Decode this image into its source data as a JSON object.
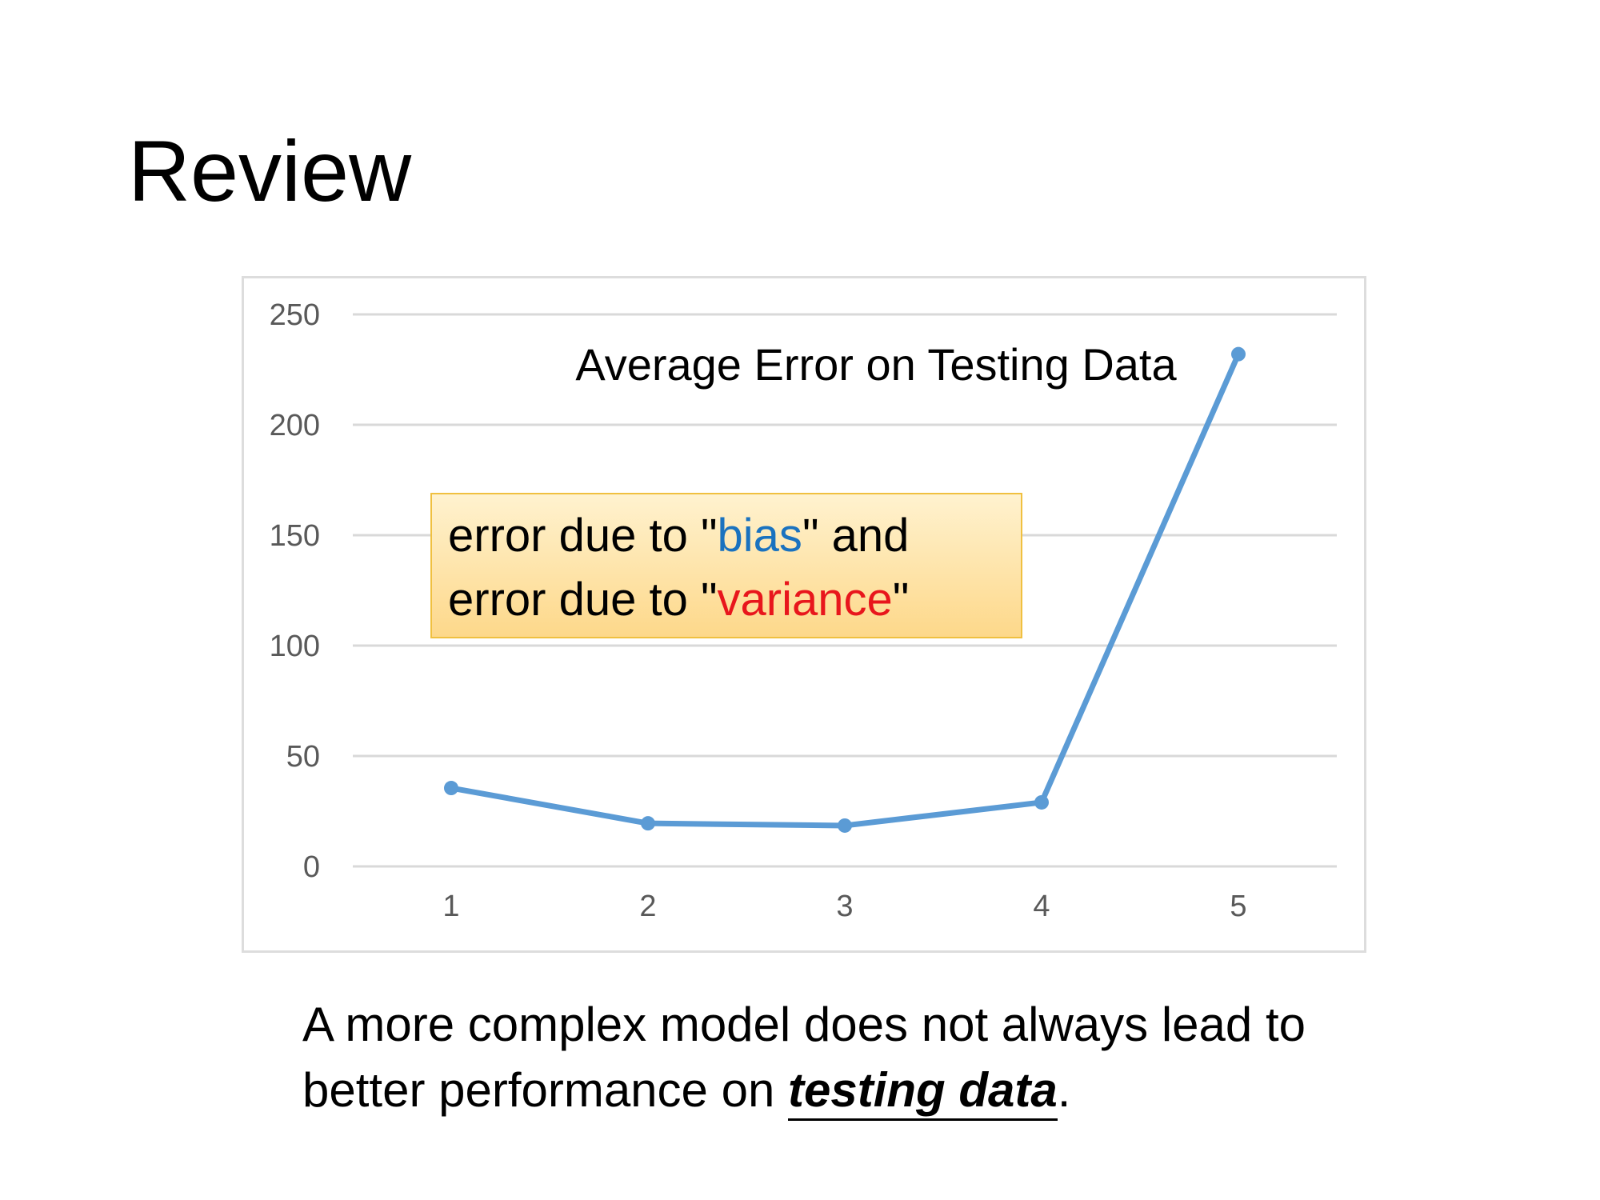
{
  "slide": {
    "title": "Review"
  },
  "callout": {
    "line1_prefix": "error due to \"",
    "line1_colored": "bias",
    "line1_suffix": "\" and",
    "line2_prefix": "error due to \"",
    "line2_colored": "variance",
    "line2_suffix": "\"",
    "colors": {
      "bias": "#1a72bf",
      "variance": "#e8161c",
      "background": "#fdd88a"
    }
  },
  "conclusion": {
    "line1": "A more complex model does not always lead to",
    "line2_prefix": "better performance on ",
    "line2_emphasis": "testing data",
    "line2_suffix": "."
  },
  "chart_data": {
    "type": "line",
    "title": "Average Error on Testing Data",
    "xlabel": "",
    "ylabel": "",
    "categories": [
      "1",
      "2",
      "3",
      "4",
      "5"
    ],
    "series": [
      {
        "values": [
          35.5,
          19.5,
          18.5,
          29,
          232
        ],
        "color": "#5b9bd5"
      }
    ],
    "ylim": [
      0,
      250
    ],
    "yticks": [
      0,
      50,
      100,
      150,
      200,
      250
    ],
    "grid": true,
    "legend": "none"
  }
}
